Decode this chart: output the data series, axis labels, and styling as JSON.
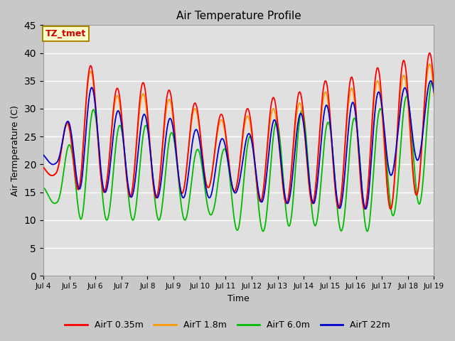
{
  "title": "Air Temperature Profile",
  "xlabel": "Time",
  "ylabel": "Air Termperature (C)",
  "ylim": [
    0,
    45
  ],
  "yticks": [
    0,
    5,
    10,
    15,
    20,
    25,
    30,
    35,
    40,
    45
  ],
  "fig_bg_color": "#c8c8c8",
  "plot_bg_color": "#e0e0e0",
  "grid_color": "#ffffff",
  "colors": {
    "AirT 0.35m": "#ff0000",
    "AirT 1.8m": "#ff9900",
    "AirT 6.0m": "#00bb00",
    "AirT 22m": "#0000cc"
  },
  "annotation_text": "TZ_tmet",
  "annotation_fg": "#cc0000",
  "annotation_bg": "#ffffcc",
  "annotation_border": "#aa8800",
  "n_days": 15,
  "start_day": 4,
  "figsize": [
    6.4,
    4.8
  ],
  "dpi": 100
}
